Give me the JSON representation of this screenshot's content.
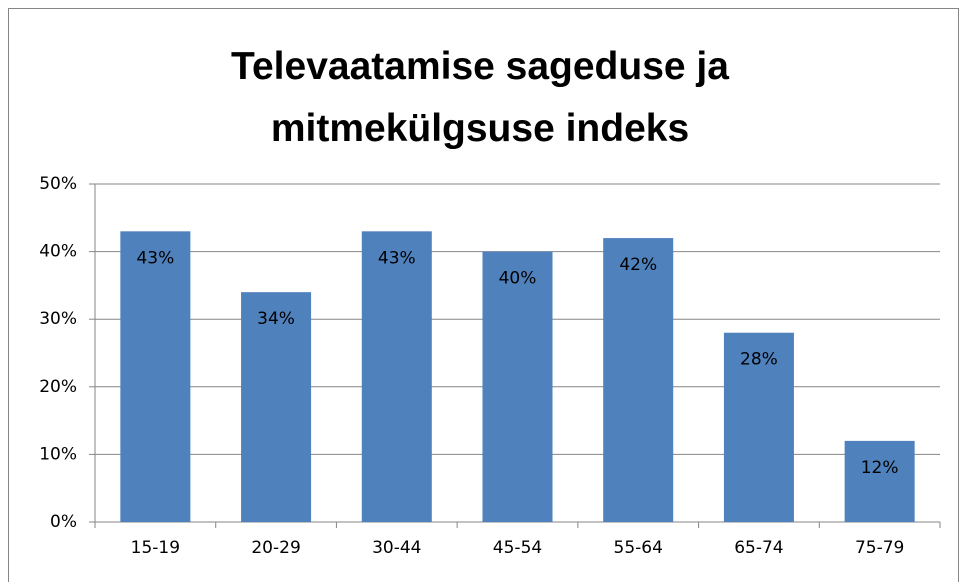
{
  "chart_data": {
    "type": "bar",
    "title": "Televaatamise sageduse ja mitmekülgsuse indeks",
    "categories": [
      "15-19",
      "20-29",
      "30-44",
      "45-54",
      "55-64",
      "65-74",
      "75-79"
    ],
    "values": [
      43,
      34,
      43,
      40,
      42,
      28,
      12
    ],
    "value_labels": [
      "43%",
      "34%",
      "43%",
      "40%",
      "42%",
      "28%",
      "12%"
    ],
    "color": "#4f81bd",
    "ylim": [
      0,
      50
    ],
    "yticks": [
      {
        "value": 0,
        "label": "0%"
      },
      {
        "value": 10,
        "label": "10%"
      },
      {
        "value": 20,
        "label": "20%"
      },
      {
        "value": 30,
        "label": "30%"
      },
      {
        "value": 40,
        "label": "40%"
      },
      {
        "value": 50,
        "label": "50%"
      }
    ],
    "grid": true
  }
}
